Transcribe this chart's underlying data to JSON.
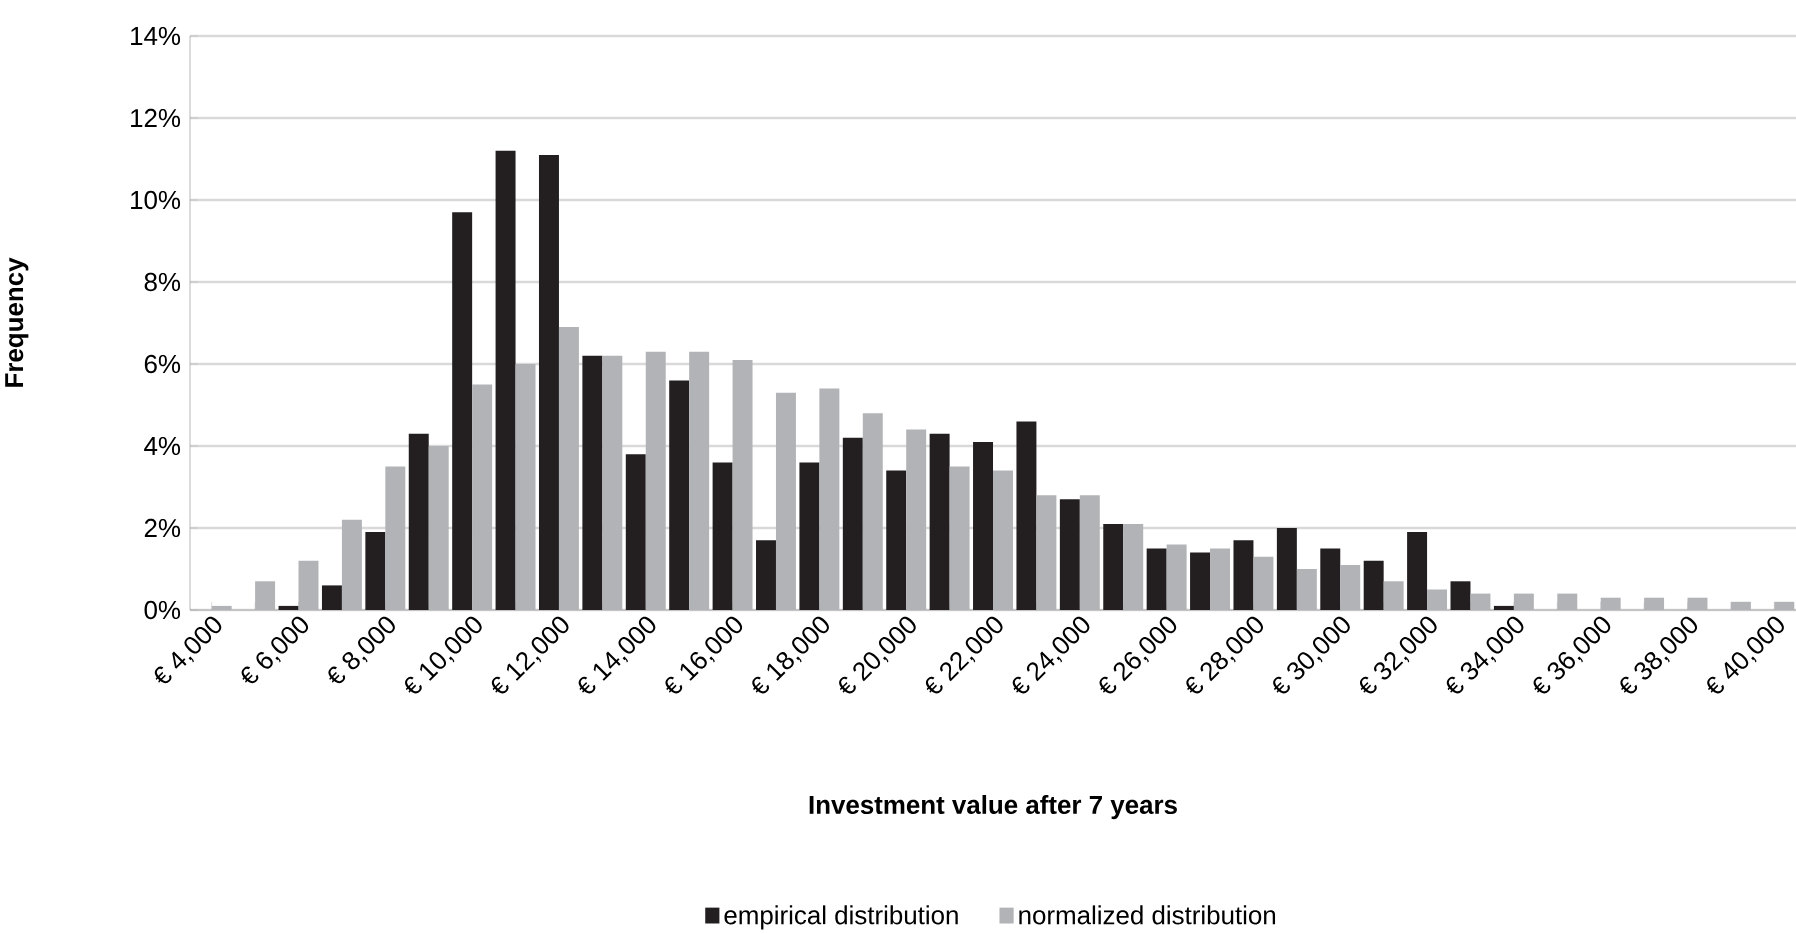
{
  "chart_data": {
    "type": "bar",
    "xlabel": "Investment value after 7 years",
    "ylabel": "Frequency",
    "categories": [
      "€ 4,000",
      null,
      "€ 6,000",
      null,
      "€ 8,000",
      null,
      "€ 10,000",
      null,
      "€ 12,000",
      null,
      "€ 14,000",
      null,
      "€ 16,000",
      null,
      "€ 18,000",
      null,
      "€ 20,000",
      null,
      "€ 22,000",
      null,
      "€ 24,000",
      null,
      "€ 26,000",
      null,
      "€ 28,000",
      null,
      "€ 30,000",
      null,
      "€ 32,000",
      null,
      "€ 34,000",
      null,
      "€ 36,000",
      null,
      "€ 38,000",
      null,
      "€ 40,000"
    ],
    "series": [
      {
        "name": "empirical distribution",
        "color": "#231f20",
        "values": [
          0,
          0,
          0.1,
          0.6,
          1.9,
          4.3,
          9.7,
          11.2,
          11.1,
          6.2,
          3.8,
          5.6,
          3.6,
          1.7,
          3.6,
          4.2,
          3.4,
          4.3,
          4.1,
          4.6,
          2.7,
          2.1,
          1.5,
          1.4,
          1.7,
          2.0,
          1.5,
          1.2,
          1.9,
          0.7,
          0.1,
          0,
          0,
          0,
          0,
          0,
          0
        ]
      },
      {
        "name": "normalized distribution",
        "color": "#b1b3b6",
        "values": [
          0.1,
          0.7,
          1.2,
          2.2,
          3.5,
          4.0,
          5.5,
          6.0,
          6.9,
          6.2,
          6.3,
          6.3,
          6.1,
          5.3,
          5.4,
          4.8,
          4.4,
          3.5,
          3.4,
          2.8,
          2.8,
          2.1,
          1.6,
          1.5,
          1.3,
          1.0,
          1.1,
          0.7,
          0.5,
          0.4,
          0.4,
          0.4,
          0.3,
          0.3,
          0.3,
          0.2,
          0.2
        ]
      }
    ],
    "ylim": [
      0,
      14
    ],
    "yticks": [
      {
        "value": 0,
        "label": "0%"
      },
      {
        "value": 2,
        "label": "2%"
      },
      {
        "value": 4,
        "label": "4%"
      },
      {
        "value": 6,
        "label": "6%"
      },
      {
        "value": 8,
        "label": "8%"
      },
      {
        "value": 10,
        "label": "10%"
      },
      {
        "value": 12,
        "label": "12%"
      },
      {
        "value": 14,
        "label": "14%"
      }
    ],
    "grid": "y",
    "legend": "bottom"
  }
}
